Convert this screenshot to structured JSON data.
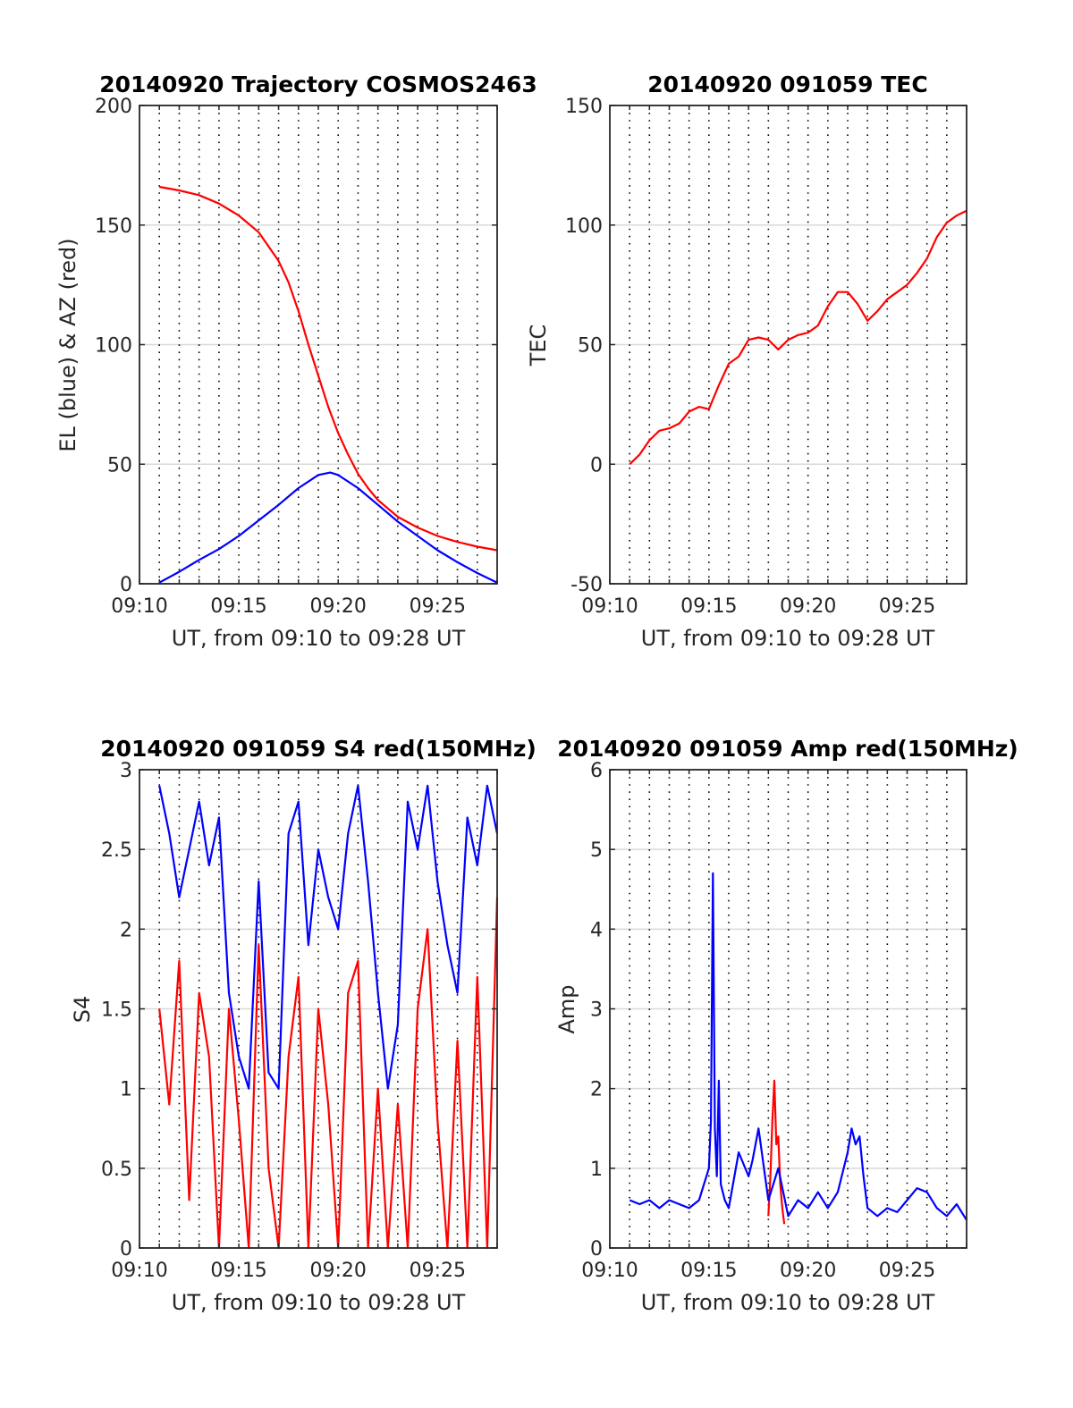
{
  "colors": {
    "red": "#ff0000",
    "blue": "#0000ff",
    "grid": "#d9d9d9",
    "vline": "#000000",
    "axis": "#262626"
  },
  "chart_data": [
    {
      "type": "line",
      "title": "20140920 Trajectory COSMOS2463",
      "xlabel": "UT, from 09:10 to 09:28 UT",
      "ylabel": "EL (blue) & AZ (red)",
      "xlim": [
        "09:10",
        "09:28"
      ],
      "ylim": [
        0,
        200
      ],
      "xticks": [
        "09:10",
        "09:15",
        "09:20",
        "09:25"
      ],
      "yticks": [
        0,
        50,
        100,
        150,
        200
      ],
      "grid": "horizontal",
      "vertical_dotted_lines_every_minutes": 1,
      "series": [
        {
          "color": "red",
          "x": [
            "09:11:00",
            "09:12:00",
            "09:13:00",
            "09:14:00",
            "09:15:00",
            "09:16:00",
            "09:17:00",
            "09:17:30",
            "09:18:00",
            "09:18:30",
            "09:19:00",
            "09:19:30",
            "09:20:00",
            "09:20:30",
            "09:21:00",
            "09:21:30",
            "09:22:00",
            "09:23:00",
            "09:24:00",
            "09:25:00",
            "09:26:00",
            "09:27:00",
            "09:28:00"
          ],
          "y": [
            166,
            164.5,
            162.5,
            159,
            154,
            147,
            135,
            126,
            114,
            100,
            87,
            74,
            63,
            54,
            46,
            40,
            35,
            28,
            23.5,
            20,
            17.5,
            15.5,
            14
          ]
        },
        {
          "color": "blue",
          "x": [
            "09:11:00",
            "09:12:00",
            "09:13:00",
            "09:14:00",
            "09:15:00",
            "09:16:00",
            "09:17:00",
            "09:18:00",
            "09:19:00",
            "09:19:36",
            "09:20:00",
            "09:21:00",
            "09:22:00",
            "09:23:00",
            "09:24:00",
            "09:25:00",
            "09:26:00",
            "09:27:00",
            "09:28:00"
          ],
          "y": [
            0.5,
            5,
            10,
            14.5,
            20,
            26.5,
            33,
            40,
            45.5,
            46.5,
            45.5,
            40,
            33,
            26,
            20,
            14,
            9,
            4.5,
            0.5
          ]
        }
      ]
    },
    {
      "type": "line",
      "title": "20140920 091059 TEC",
      "xlabel": "UT, from 09:10 to 09:28 UT",
      "ylabel": "TEC",
      "xlim": [
        "09:10",
        "09:28"
      ],
      "ylim": [
        -50,
        150
      ],
      "xticks": [
        "09:10",
        "09:15",
        "09:20",
        "09:25"
      ],
      "yticks": [
        -50,
        0,
        50,
        100,
        150
      ],
      "grid": "horizontal",
      "vertical_dotted_lines_every_minutes": 1,
      "series": [
        {
          "color": "red",
          "x": [
            "09:11:00",
            "09:11:30",
            "09:12:00",
            "09:12:30",
            "09:13:00",
            "09:13:30",
            "09:14:00",
            "09:14:30",
            "09:15:00",
            "09:15:30",
            "09:16:00",
            "09:16:30",
            "09:17:00",
            "09:17:30",
            "09:18:00",
            "09:18:30",
            "09:19:00",
            "09:19:30",
            "09:20:00",
            "09:20:30",
            "09:21:00",
            "09:21:30",
            "09:22:00",
            "09:22:30",
            "09:23:00",
            "09:23:30",
            "09:24:00",
            "09:24:30",
            "09:25:00",
            "09:25:30",
            "09:26:00",
            "09:26:30",
            "09:27:00",
            "09:27:30",
            "09:28:00"
          ],
          "y": [
            0,
            4,
            10,
            14,
            15,
            17,
            22,
            24,
            23,
            33,
            42,
            45,
            52,
            53,
            52,
            48,
            52,
            54,
            55,
            58,
            66,
            72,
            72,
            67,
            60,
            64,
            69,
            72,
            75,
            80,
            86,
            95,
            101,
            104,
            106
          ]
        }
      ]
    },
    {
      "type": "line",
      "title": "20140920 091059 S4 red(150MHz)",
      "xlabel": "UT, from 09:10 to 09:28 UT",
      "ylabel": "S4",
      "xlim": [
        "09:10",
        "09:28"
      ],
      "ylim": [
        0,
        3
      ],
      "xticks": [
        "09:10",
        "09:15",
        "09:20",
        "09:25"
      ],
      "yticks": [
        0,
        0.5,
        1,
        1.5,
        2,
        2.5,
        3
      ],
      "grid": "horizontal",
      "vertical_dotted_lines_every_minutes": 1,
      "series": [
        {
          "color": "blue",
          "x": [
            "09:11:00",
            "09:11:30",
            "09:12:00",
            "09:12:30",
            "09:13:00",
            "09:13:30",
            "09:14:00",
            "09:14:30",
            "09:15:00",
            "09:15:30",
            "09:16:00",
            "09:16:30",
            "09:17:00",
            "09:17:30",
            "09:18:00",
            "09:18:30",
            "09:19:00",
            "09:19:30",
            "09:20:00",
            "09:20:30",
            "09:21:00",
            "09:21:30",
            "09:22:00",
            "09:22:30",
            "09:23:00",
            "09:23:30",
            "09:24:00",
            "09:24:30",
            "09:25:00",
            "09:25:30",
            "09:26:00",
            "09:26:30",
            "09:27:00",
            "09:27:30",
            "09:28:00"
          ],
          "y": [
            2.9,
            2.6,
            2.2,
            2.5,
            2.8,
            2.4,
            2.7,
            1.6,
            1.2,
            1.0,
            2.3,
            1.1,
            1.0,
            2.6,
            2.8,
            1.9,
            2.5,
            2.2,
            2.0,
            2.6,
            2.9,
            2.3,
            1.6,
            1.0,
            1.4,
            2.8,
            2.5,
            2.9,
            2.3,
            1.9,
            1.6,
            2.7,
            2.4,
            2.9,
            2.6
          ]
        },
        {
          "color": "red",
          "x": [
            "09:11:00",
            "09:11:30",
            "09:12:00",
            "09:12:30",
            "09:13:00",
            "09:13:30",
            "09:14:00",
            "09:14:30",
            "09:15:00",
            "09:15:30",
            "09:16:00",
            "09:16:30",
            "09:17:00",
            "09:17:30",
            "09:18:00",
            "09:18:30",
            "09:19:00",
            "09:19:30",
            "09:20:00",
            "09:20:30",
            "09:21:00",
            "09:21:30",
            "09:22:00",
            "09:22:30",
            "09:23:00",
            "09:23:30",
            "09:24:00",
            "09:24:30",
            "09:25:00",
            "09:25:30",
            "09:26:00",
            "09:26:30",
            "09:27:00",
            "09:27:30",
            "09:28:00"
          ],
          "y": [
            1.5,
            0.9,
            1.8,
            0.3,
            1.6,
            1.2,
            0.0,
            1.5,
            0.8,
            0.0,
            1.9,
            0.5,
            0.0,
            1.2,
            1.7,
            0.0,
            1.5,
            0.9,
            0.0,
            1.6,
            1.8,
            0.0,
            1.0,
            0.0,
            0.9,
            0.0,
            1.5,
            2.0,
            0.8,
            0.0,
            1.3,
            0.0,
            1.7,
            0.0,
            2.2
          ]
        }
      ]
    },
    {
      "type": "line",
      "title": "20140920 091059 Amp red(150MHz)",
      "xlabel": "UT, from 09:10 to 09:28 UT",
      "ylabel": "Amp",
      "xlim": [
        "09:10",
        "09:28"
      ],
      "ylim": [
        0,
        6
      ],
      "xticks": [
        "09:10",
        "09:15",
        "09:20",
        "09:25"
      ],
      "yticks": [
        0,
        1,
        2,
        3,
        4,
        5,
        6
      ],
      "grid": "horizontal",
      "vertical_dotted_lines_every_minutes": 1,
      "series": [
        {
          "color": "red",
          "x": [
            "09:18:00",
            "09:18:06",
            "09:18:12",
            "09:18:18",
            "09:18:24",
            "09:18:30",
            "09:18:36",
            "09:18:42",
            "09:18:48"
          ],
          "y": [
            0.4,
            0.9,
            1.6,
            2.1,
            1.3,
            1.4,
            0.8,
            0.5,
            0.3
          ]
        },
        {
          "color": "blue",
          "x": [
            "09:11:00",
            "09:11:30",
            "09:12:00",
            "09:12:30",
            "09:13:00",
            "09:13:30",
            "09:14:00",
            "09:14:30",
            "09:15:00",
            "09:15:06",
            "09:15:12",
            "09:15:18",
            "09:15:24",
            "09:15:30",
            "09:15:36",
            "09:15:48",
            "09:16:00",
            "09:16:30",
            "09:17:00",
            "09:17:12",
            "09:17:30",
            "09:18:00",
            "09:18:30",
            "09:19:00",
            "09:19:30",
            "09:20:00",
            "09:20:30",
            "09:21:00",
            "09:21:30",
            "09:22:00",
            "09:22:12",
            "09:22:24",
            "09:22:36",
            "09:22:48",
            "09:23:00",
            "09:23:30",
            "09:24:00",
            "09:24:30",
            "09:25:00",
            "09:25:30",
            "09:26:00",
            "09:26:30",
            "09:27:00",
            "09:27:30",
            "09:28:00"
          ],
          "y": [
            0.6,
            0.55,
            0.6,
            0.5,
            0.6,
            0.55,
            0.5,
            0.6,
            1.0,
            1.6,
            4.7,
            1.5,
            0.9,
            2.1,
            0.8,
            0.6,
            0.5,
            1.2,
            0.9,
            1.1,
            1.5,
            0.6,
            1.0,
            0.4,
            0.6,
            0.5,
            0.7,
            0.5,
            0.7,
            1.2,
            1.5,
            1.3,
            1.4,
            0.9,
            0.5,
            0.4,
            0.5,
            0.45,
            0.6,
            0.75,
            0.7,
            0.5,
            0.4,
            0.55,
            0.35
          ]
        }
      ]
    }
  ]
}
